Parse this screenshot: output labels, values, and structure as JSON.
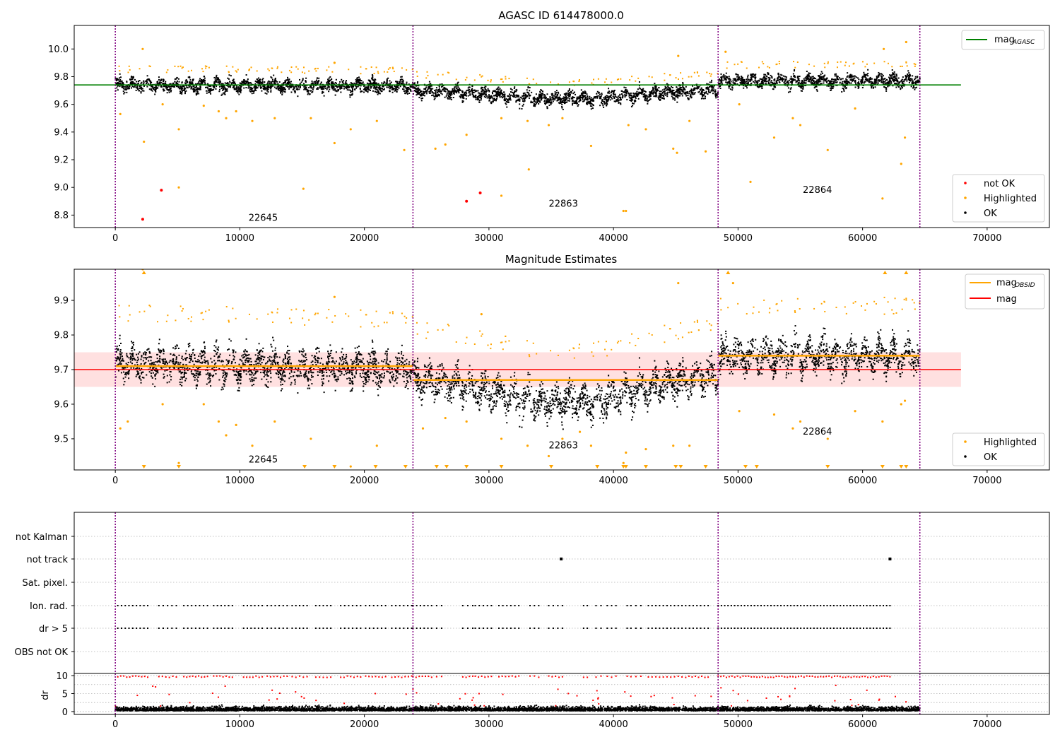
{
  "chart_data": [
    {
      "type": "scatter",
      "title": "AGASC ID 614478000.0",
      "xlim": [
        -3300,
        75000
      ],
      "ylim": [
        8.71,
        10.17
      ],
      "xticks": [
        0,
        10000,
        20000,
        30000,
        40000,
        50000,
        60000,
        70000
      ],
      "yticks": [
        8.8,
        9.0,
        9.2,
        9.4,
        9.6,
        9.8,
        10.0
      ],
      "ytick_labels": [
        "8.8",
        "9.0",
        "9.2",
        "9.4",
        "9.6",
        "9.8",
        "10.0"
      ],
      "obs_boundaries": [
        0,
        23900,
        48400,
        64600
      ],
      "obs_labels": [
        {
          "text": "22645",
          "x": 10700,
          "y": 8.78
        },
        {
          "text": "22863",
          "x": 34800,
          "y": 8.88
        },
        {
          "text": "22864",
          "x": 55200,
          "y": 8.98
        }
      ],
      "hlines": [
        {
          "name": "mag",
          "sub": "AGASC",
          "y": 9.74,
          "x": [
            -3300,
            67900
          ],
          "color": "#008000"
        }
      ],
      "legend_lines": [
        {
          "name": "mag",
          "sub": "AGASC",
          "color": "#008000"
        }
      ],
      "legend_points": [
        {
          "name": "not OK",
          "color": "#ff0000"
        },
        {
          "name": "Highlighted",
          "color": "#ffa500"
        },
        {
          "name": "OK",
          "color": "#000000"
        }
      ],
      "segments": [
        {
          "x": [
            0,
            23900
          ],
          "center": [
            9.74,
            9.73
          ],
          "spread": 0.05
        },
        {
          "x": [
            23900,
            48400
          ],
          "center": [
            9.7,
            9.7
          ],
          "dip": 0.06,
          "spread": 0.05
        },
        {
          "x": [
            48400,
            64600
          ],
          "center": [
            9.77,
            9.77
          ],
          "spread": 0.05
        }
      ],
      "highlight_offset": 0.09,
      "red_points": [
        [
          2200,
          8.77
        ],
        [
          3700,
          8.98
        ],
        [
          28200,
          8.9
        ],
        [
          29300,
          8.96
        ]
      ],
      "orange_outliers": [
        [
          400,
          9.53
        ],
        [
          2300,
          9.33
        ],
        [
          2200,
          10.0
        ],
        [
          3800,
          9.6
        ],
        [
          5100,
          9.0
        ],
        [
          5100,
          9.42
        ],
        [
          7100,
          9.59
        ],
        [
          8300,
          9.55
        ],
        [
          8900,
          9.5
        ],
        [
          9700,
          9.55
        ],
        [
          11000,
          9.48
        ],
        [
          12800,
          9.5
        ],
        [
          15100,
          8.99
        ],
        [
          15700,
          9.5
        ],
        [
          17600,
          9.32
        ],
        [
          17600,
          9.9
        ],
        [
          18900,
          9.42
        ],
        [
          21000,
          9.48
        ],
        [
          23200,
          9.27
        ],
        [
          25700,
          9.28
        ],
        [
          26500,
          9.31
        ],
        [
          28200,
          9.38
        ],
        [
          31000,
          8.94
        ],
        [
          31000,
          9.5
        ],
        [
          33100,
          9.48
        ],
        [
          33200,
          9.13
        ],
        [
          34800,
          9.45
        ],
        [
          35900,
          9.5
        ],
        [
          38200,
          9.3
        ],
        [
          40800,
          8.83
        ],
        [
          41000,
          8.83
        ],
        [
          41200,
          9.45
        ],
        [
          42600,
          9.42
        ],
        [
          44800,
          9.28
        ],
        [
          45100,
          9.25
        ],
        [
          45200,
          9.95
        ],
        [
          46100,
          9.48
        ],
        [
          47400,
          9.26
        ],
        [
          49000,
          9.98
        ],
        [
          50100,
          9.6
        ],
        [
          51000,
          9.04
        ],
        [
          52900,
          9.36
        ],
        [
          54400,
          9.5
        ],
        [
          55000,
          9.45
        ],
        [
          57200,
          9.27
        ],
        [
          59400,
          9.57
        ],
        [
          61600,
          8.92
        ],
        [
          61700,
          10.0
        ],
        [
          63100,
          9.17
        ],
        [
          63400,
          9.36
        ],
        [
          63500,
          10.05
        ]
      ]
    },
    {
      "type": "scatter",
      "title": "Magnitude Estimates",
      "xlim": [
        -3300,
        75000
      ],
      "ylim": [
        9.41,
        9.99
      ],
      "xticks": [
        0,
        10000,
        20000,
        30000,
        40000,
        50000,
        60000,
        70000
      ],
      "yticks": [
        9.5,
        9.6,
        9.7,
        9.8,
        9.9
      ],
      "ytick_labels": [
        "9.5",
        "9.6",
        "9.7",
        "9.8",
        "9.9"
      ],
      "obs_boundaries": [
        0,
        23900,
        48400,
        64600
      ],
      "obs_labels": [
        {
          "text": "22645",
          "x": 10700,
          "y": 9.44
        },
        {
          "text": "22863",
          "x": 34800,
          "y": 9.48
        },
        {
          "text": "22864",
          "x": 55200,
          "y": 9.52
        }
      ],
      "band": {
        "y": [
          9.65,
          9.75
        ],
        "x": [
          -3300,
          67900
        ],
        "color": "#ff0000",
        "opacity": 0.12
      },
      "hlines": [
        {
          "name": "mag",
          "y": 9.7,
          "x": [
            -3300,
            67900
          ],
          "color": "#ff0000"
        }
      ],
      "obs_mags": [
        {
          "x": [
            0,
            23900
          ],
          "y": 9.71
        },
        {
          "x": [
            23900,
            48400
          ],
          "y": 9.67
        },
        {
          "x": [
            48400,
            64600
          ],
          "y": 9.74
        }
      ],
      "legend_lines": [
        {
          "name": "mag",
          "sub": "OBSID",
          "color": "#ffa500"
        },
        {
          "name": "mag",
          "sub": "",
          "color": "#ff0000"
        }
      ],
      "legend_points": [
        {
          "name": "Highlighted",
          "color": "#ffa500"
        },
        {
          "name": "OK",
          "color": "#000000"
        }
      ],
      "segments": [
        {
          "x": [
            0,
            23900
          ],
          "center": [
            9.72,
            9.7
          ],
          "spread": 0.05
        },
        {
          "x": [
            23900,
            48400
          ],
          "center": [
            9.67,
            9.68
          ],
          "dip": 0.07,
          "spread": 0.05
        },
        {
          "x": [
            48400,
            64600
          ],
          "center": [
            9.74,
            9.74
          ],
          "spread": 0.05
        }
      ],
      "highlight_offset": 0.12,
      "orange_outliers": [
        [
          400,
          9.53
        ],
        [
          1000,
          9.55
        ],
        [
          2200,
          9.99
        ],
        [
          3800,
          9.6
        ],
        [
          5100,
          9.43
        ],
        [
          7100,
          9.6
        ],
        [
          8300,
          9.55
        ],
        [
          8900,
          9.51
        ],
        [
          9700,
          9.54
        ],
        [
          11000,
          9.48
        ],
        [
          12800,
          9.55
        ],
        [
          15700,
          9.5
        ],
        [
          17600,
          9.91
        ],
        [
          18900,
          9.42
        ],
        [
          21000,
          9.48
        ],
        [
          24700,
          9.53
        ],
        [
          26500,
          9.56
        ],
        [
          28200,
          9.55
        ],
        [
          29400,
          9.86
        ],
        [
          31000,
          9.5
        ],
        [
          33100,
          9.48
        ],
        [
          34800,
          9.45
        ],
        [
          35900,
          9.5
        ],
        [
          37300,
          9.52
        ],
        [
          38200,
          9.48
        ],
        [
          40800,
          9.43
        ],
        [
          41000,
          9.46
        ],
        [
          42600,
          9.47
        ],
        [
          44800,
          9.48
        ],
        [
          45200,
          9.95
        ],
        [
          46100,
          9.48
        ],
        [
          49600,
          9.95
        ],
        [
          50100,
          9.58
        ],
        [
          52900,
          9.57
        ],
        [
          54400,
          9.53
        ],
        [
          55000,
          9.55
        ],
        [
          57200,
          9.5
        ],
        [
          59400,
          9.58
        ],
        [
          61600,
          9.55
        ],
        [
          63100,
          9.6
        ],
        [
          63400,
          9.61
        ]
      ],
      "triangles_bottom": [
        2300,
        5100,
        15200,
        17600,
        20900,
        23300,
        25800,
        26600,
        28200,
        31000,
        35000,
        38700,
        40800,
        41000,
        42600,
        45000,
        45400,
        47400,
        50600,
        51500,
        57200,
        61600,
        63100,
        63500
      ],
      "triangles_top": [
        2300,
        49200,
        61800,
        63500
      ]
    },
    {
      "type": "scatter",
      "title": "",
      "xlim": [
        -3300,
        75000
      ],
      "xticks": [
        0,
        10000,
        20000,
        30000,
        40000,
        50000,
        60000,
        70000
      ],
      "obs_boundaries": [
        0,
        23900,
        48400,
        64600
      ],
      "flag_rows": [
        "not Kalman",
        "not track",
        "Sat. pixel.",
        "Ion. rad.",
        "dr > 5",
        "OBS not OK"
      ],
      "flag_clusters": [
        [
          200,
          2600
        ],
        [
          3500,
          4900
        ],
        [
          5500,
          7400
        ],
        [
          7900,
          9400
        ],
        [
          10300,
          11800
        ],
        [
          12200,
          13800
        ],
        [
          14200,
          15400
        ],
        [
          16100,
          17300
        ],
        [
          18100,
          19700
        ],
        [
          20100,
          21700
        ],
        [
          22200,
          23800
        ],
        [
          23900,
          25400
        ],
        [
          25800,
          26200
        ],
        [
          27900,
          28700
        ],
        [
          28900,
          30200
        ],
        [
          30800,
          32400
        ],
        [
          33300,
          34000
        ],
        [
          34800,
          35900
        ],
        [
          37600,
          37900
        ],
        [
          38600,
          39000
        ],
        [
          39500,
          40200
        ],
        [
          41100,
          41400
        ],
        [
          41800,
          42200
        ],
        [
          42800,
          44000
        ],
        [
          44300,
          45500
        ],
        [
          45800,
          47600
        ],
        [
          48400,
          62200
        ]
      ],
      "not_track_points": [
        35800,
        62200
      ],
      "dr_yticks": [
        0,
        5,
        10
      ],
      "dr_ylim": [
        -0.8,
        10.6
      ],
      "dr_label": "dr"
    }
  ]
}
